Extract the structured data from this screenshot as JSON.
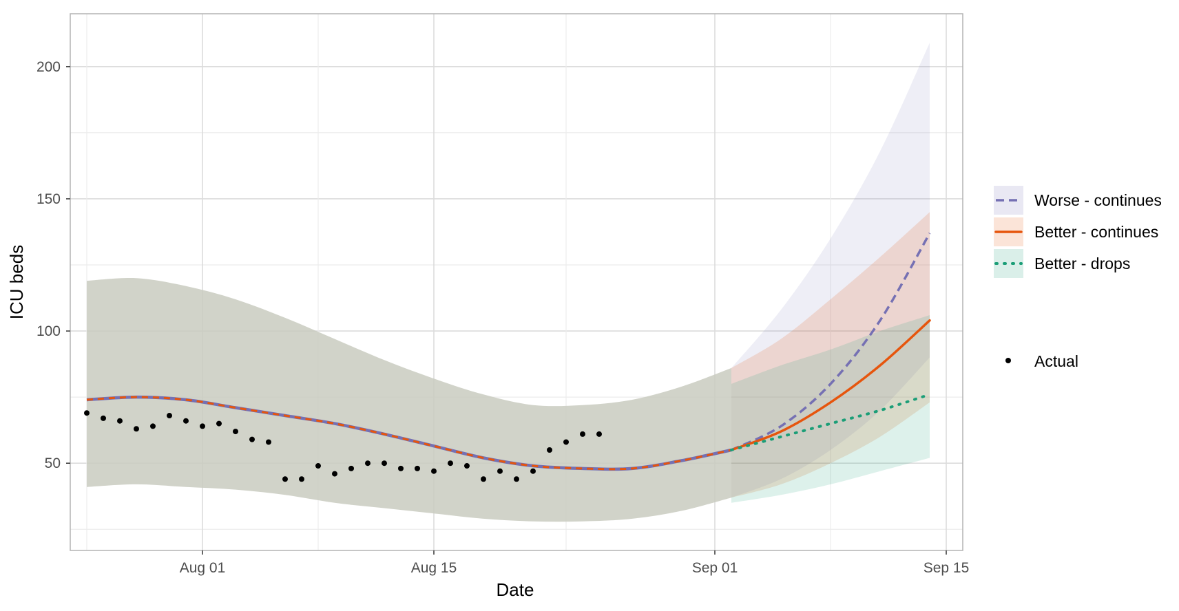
{
  "chart_data": {
    "type": "line",
    "title": "",
    "xlabel": "Date",
    "ylabel": "ICU beds",
    "x_ticks": [
      "Aug 01",
      "Aug 15",
      "Sep 01",
      "Sep 15"
    ],
    "y_ticks": [
      "50",
      "100",
      "150",
      "200"
    ],
    "xlim": [
      "2021-07-24",
      "2021-09-16"
    ],
    "ylim": [
      17,
      220
    ],
    "grid": true,
    "legend_position": "right",
    "shared_fit": {
      "x": [
        "2021-07-25",
        "2021-07-28",
        "2021-07-31",
        "2021-08-03",
        "2021-08-06",
        "2021-08-09",
        "2021-08-12",
        "2021-08-15",
        "2021-08-18",
        "2021-08-21",
        "2021-08-24",
        "2021-08-27",
        "2021-08-30",
        "2021-09-02"
      ],
      "y": [
        74,
        75,
        74,
        71,
        68,
        65,
        61,
        56.5,
        52,
        49,
        48,
        48,
        51,
        55
      ],
      "lower": [
        41,
        42,
        41,
        40,
        38,
        35,
        33,
        31,
        29,
        28,
        28,
        29,
        32,
        37
      ],
      "upper": [
        119,
        120,
        117,
        112,
        105,
        97,
        89,
        82,
        76,
        72,
        72,
        74,
        79,
        86
      ]
    },
    "series": [
      {
        "name": "Worse - continues",
        "style": "dashed",
        "color": "#7570b3",
        "x": [
          "2021-09-02",
          "2021-09-05",
          "2021-09-08",
          "2021-09-11",
          "2021-09-14"
        ],
        "y": [
          55,
          64,
          80,
          104,
          137
        ],
        "lower": [
          37,
          44,
          55,
          70,
          90
        ],
        "upper": [
          86,
          108,
          135,
          168,
          209
        ]
      },
      {
        "name": "Better - continues",
        "style": "solid",
        "color": "#e6550d",
        "x": [
          "2021-09-02",
          "2021-09-05",
          "2021-09-08",
          "2021-09-11",
          "2021-09-14"
        ],
        "y": [
          55,
          62,
          73,
          87,
          104
        ],
        "lower": [
          37,
          42,
          50,
          60,
          73
        ],
        "upper": [
          86,
          97,
          112,
          128,
          145
        ]
      },
      {
        "name": "Better - drops",
        "style": "dotted",
        "color": "#1b9e77",
        "x": [
          "2021-09-02",
          "2021-09-05",
          "2021-09-08",
          "2021-09-11",
          "2021-09-14"
        ],
        "y": [
          55,
          60,
          65,
          70,
          76
        ],
        "lower": [
          35,
          38,
          42,
          47,
          52
        ],
        "upper": [
          80,
          87,
          93,
          100,
          106
        ]
      }
    ],
    "actual": {
      "name": "Actual",
      "x": [
        "2021-07-25",
        "2021-07-26",
        "2021-07-27",
        "2021-07-28",
        "2021-07-29",
        "2021-07-30",
        "2021-07-31",
        "2021-08-01",
        "2021-08-02",
        "2021-08-03",
        "2021-08-04",
        "2021-08-05",
        "2021-08-06",
        "2021-08-07",
        "2021-08-08",
        "2021-08-09",
        "2021-08-10",
        "2021-08-11",
        "2021-08-12",
        "2021-08-13",
        "2021-08-14",
        "2021-08-15",
        "2021-08-16",
        "2021-08-17",
        "2021-08-18",
        "2021-08-19",
        "2021-08-20",
        "2021-08-21",
        "2021-08-22",
        "2021-08-23",
        "2021-08-24",
        "2021-08-25"
      ],
      "y": [
        69,
        67,
        66,
        63,
        64,
        68,
        66,
        64,
        65,
        62,
        59,
        58,
        44,
        44,
        49,
        46,
        48,
        50,
        50,
        48,
        48,
        47,
        50,
        49,
        44,
        47,
        44,
        47,
        55,
        58,
        61,
        61
      ]
    },
    "legend": [
      "Worse - continues",
      "Better - continues",
      "Better - drops",
      "Actual"
    ]
  },
  "colors": {
    "worse": "#7570b3",
    "better_continues": "#e6550d",
    "better_drops": "#1b9e77",
    "shared_ribbon": "#c9cbc0",
    "points": "#000000"
  }
}
